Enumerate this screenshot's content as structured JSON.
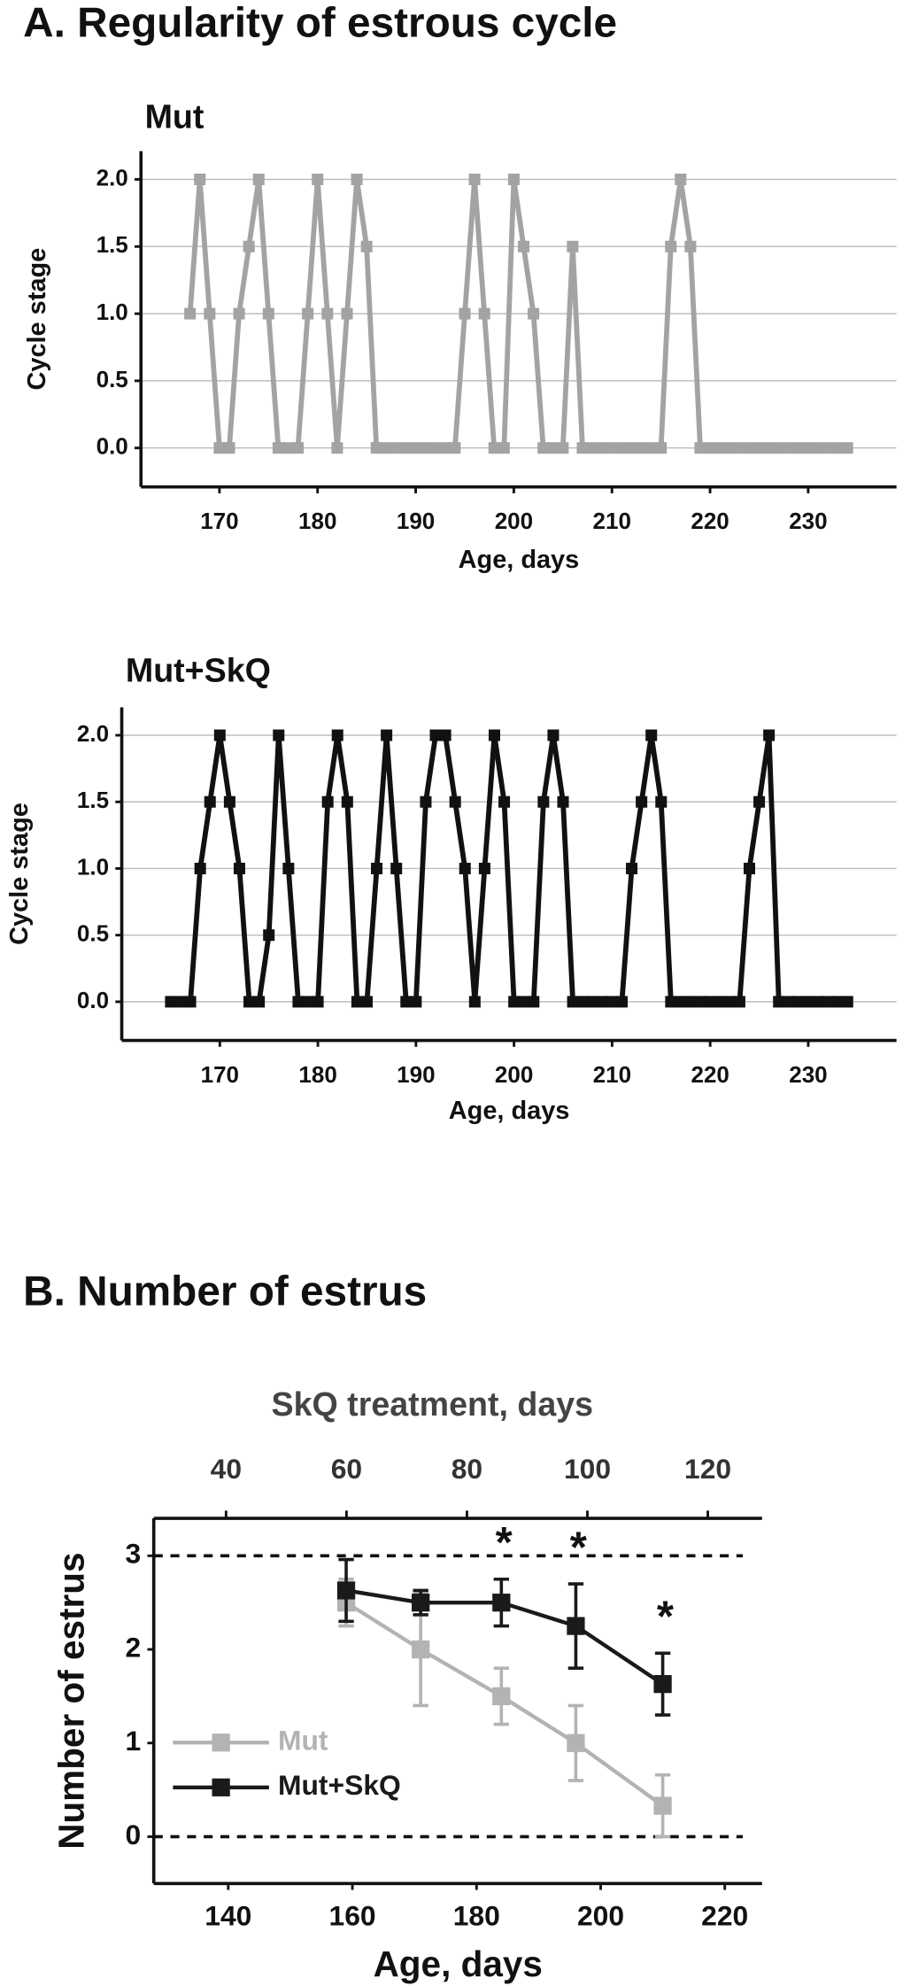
{
  "headings": [
    "A. Regularity of estrous cycle",
    "B. Number of estrus"
  ],
  "chart_data": [
    {
      "type": "line",
      "title": "Mut",
      "xlabel": "Age, days",
      "ylabel": "Cycle stage",
      "color": "#a3a3a3",
      "grid": true,
      "x": [
        167,
        168,
        169,
        170,
        171,
        172,
        173,
        174,
        175,
        176,
        177,
        178,
        179,
        180,
        181,
        182,
        183,
        184,
        185,
        186,
        187,
        188,
        189,
        190,
        191,
        192,
        193,
        194,
        195,
        196,
        197,
        198,
        199,
        200,
        201,
        202,
        203,
        204,
        205,
        206,
        207,
        208,
        209,
        210,
        211,
        212,
        213,
        214,
        215,
        216,
        217,
        218,
        219,
        220,
        221,
        222,
        223,
        224,
        225,
        226,
        227,
        228,
        229,
        230,
        231,
        232,
        233,
        234
      ],
      "values": [
        1,
        2,
        1,
        0,
        0,
        1,
        1.5,
        2,
        1,
        0,
        0,
        0,
        1,
        2,
        1,
        0,
        1,
        2,
        1.5,
        0,
        0,
        0,
        0,
        0,
        0,
        0,
        0,
        0,
        1,
        2,
        1,
        0,
        0,
        2,
        1.5,
        1,
        0,
        0,
        0,
        1.5,
        0,
        0,
        0,
        0,
        0,
        0,
        0,
        0,
        0,
        1.5,
        2,
        1.5,
        0,
        0,
        0,
        0,
        0,
        0,
        0,
        0,
        0,
        0,
        0,
        0,
        0,
        0,
        0,
        0
      ],
      "xlim": [
        162,
        239
      ],
      "xticks": [
        170,
        180,
        190,
        200,
        210,
        220,
        230
      ],
      "ylim": [
        -0.29,
        2.21
      ],
      "yticks": [
        {
          "value": 0,
          "label": "0.0"
        },
        0.5,
        {
          "value": 1,
          "label": "1.0"
        },
        1.5,
        {
          "value": 2,
          "label": "2.0"
        }
      ]
    },
    {
      "type": "line",
      "title": "Mut+SkQ",
      "xlabel": "Age, days",
      "ylabel": "Cycle stage",
      "color": "#111111",
      "grid": true,
      "x": [
        165,
        166,
        167,
        168,
        169,
        170,
        171,
        172,
        173,
        174,
        175,
        176,
        177,
        178,
        179,
        180,
        181,
        182,
        183,
        184,
        185,
        186,
        187,
        188,
        189,
        190,
        191,
        192,
        193,
        194,
        195,
        196,
        197,
        198,
        199,
        200,
        201,
        202,
        203,
        204,
        205,
        206,
        207,
        208,
        209,
        210,
        211,
        212,
        213,
        214,
        215,
        216,
        217,
        218,
        219,
        220,
        221,
        222,
        223,
        224,
        225,
        226,
        227,
        228,
        229,
        230,
        231,
        232,
        233,
        234
      ],
      "values": [
        0,
        0,
        0,
        1,
        1.5,
        2,
        1.5,
        1,
        0,
        0,
        0.5,
        2,
        1,
        0,
        0,
        0,
        1.5,
        2,
        1.5,
        0,
        0,
        1,
        2,
        1,
        0,
        0,
        1.5,
        2,
        2,
        1.5,
        1,
        0,
        1,
        2,
        1.5,
        0,
        0,
        0,
        1.5,
        2,
        1.5,
        0,
        0,
        0,
        0,
        0,
        0,
        1,
        1.5,
        2,
        1.5,
        0,
        0,
        0,
        0,
        0,
        0,
        0,
        0,
        1,
        1.5,
        2,
        0,
        0,
        0,
        0,
        0,
        0,
        0,
        0
      ],
      "xlim": [
        160,
        239
      ],
      "xticks": [
        170,
        180,
        190,
        200,
        210,
        220,
        230
      ],
      "ylim": [
        -0.29,
        2.21
      ],
      "yticks": [
        {
          "value": 0,
          "label": "0.0"
        },
        0.5,
        {
          "value": 1,
          "label": "1.0"
        },
        1.5,
        {
          "value": 2,
          "label": "2.0"
        }
      ]
    },
    {
      "type": "errorline",
      "xlabel": "Age, days",
      "x2label": "SkQ treatment, days",
      "ylabel": "Number of estrus",
      "legend": "lower left",
      "x": [
        159,
        171,
        184,
        196,
        210
      ],
      "series": [
        {
          "name": "Mut",
          "color": "#b3b3b3",
          "values": [
            2.5,
            2.0,
            1.5,
            1.0,
            0.33
          ],
          "errors": [
            0.25,
            0.6,
            0.3,
            0.4,
            0.33
          ]
        },
        {
          "name": "Mut+SkQ",
          "color": "#1a1a1a",
          "values": [
            2.63,
            2.5,
            2.5,
            2.25,
            1.63
          ],
          "errors": [
            0.33,
            0.13,
            0.25,
            0.45,
            0.33
          ]
        }
      ],
      "hlines": [
        3,
        0
      ],
      "annotations": [
        {
          "text": "*",
          "x": 184
        },
        {
          "text": "*",
          "x": 196
        },
        {
          "text": "*",
          "x": 210
        }
      ],
      "xlim": [
        128,
        226
      ],
      "xticks": [
        140,
        160,
        180,
        200,
        220
      ],
      "x2lim": [
        28,
        129
      ],
      "x2ticks": [
        40,
        60,
        80,
        100,
        120
      ],
      "ylim": [
        -0.5,
        3.4
      ],
      "yticks": [
        0,
        1,
        2,
        3
      ]
    }
  ]
}
